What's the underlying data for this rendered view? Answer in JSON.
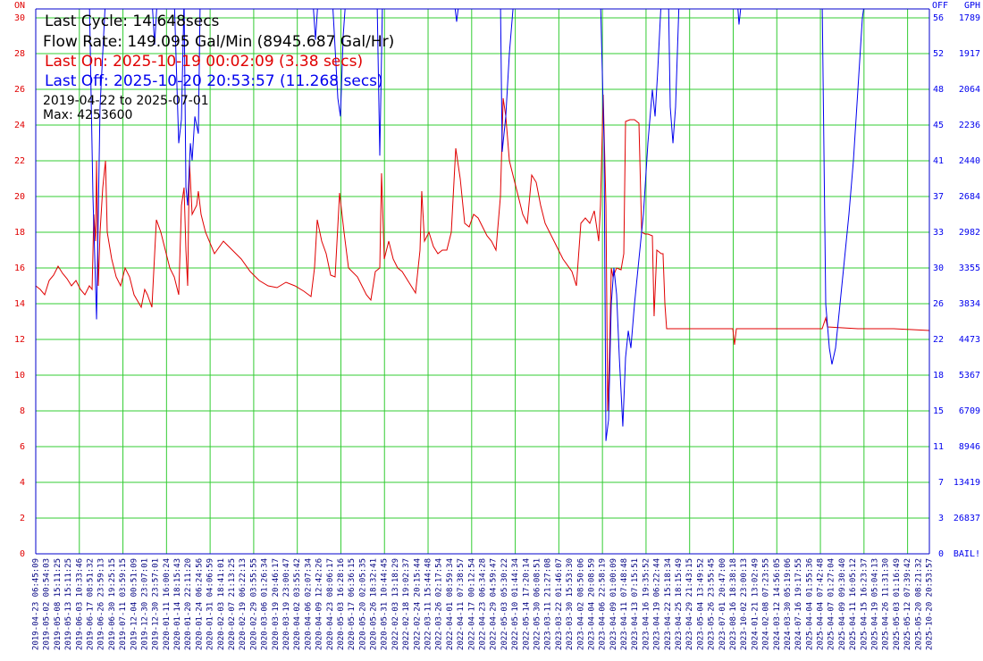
{
  "chart_data": {
    "type": "line",
    "last_cycle": "Last Cycle: 14.648secs",
    "flow_rate": "Flow Rate: 149.095 Gal/Min (8945.687 Gal/Hr)",
    "last_on": "Last On: 2025-10-19 00:02:09 (3.38 secs)",
    "last_off": "Last Off: 2025-10-20 20:53:57 (11.268 secs)",
    "date_range": "2019-04-22 to 2025-07-01",
    "max": "Max: 4253600",
    "y_axis_label": "ON",
    "y2_axis_label": "OFF",
    "gph_axis_label": "GPH",
    "categories": [
      "2019-04-23 06:45:09",
      "2019-05-02 00:54:03",
      "2019-05-08 15:11:25",
      "2019-05-13 15:11:25",
      "2019-06-03 10:33:46",
      "2019-06-17 08:51:32",
      "2019-06-26 23:59:13",
      "2019-06-30 19:25:15",
      "2019-07-11 03:59:15",
      "2019-12-04 00:51:09",
      "2019-12-30 23:07:01",
      "2019-12-30 23:57:01",
      "2020-01-11 16:00:24",
      "2020-01-14 18:15:43",
      "2020-01-20 22:11:20",
      "2020-01-24 06:24:56",
      "2020-01-31 04:06:59",
      "2020-02-03 18:41:01",
      "2020-02-07 21:13:25",
      "2020-02-19 06:22:13",
      "2020-02-29 03:55:55",
      "2020-03-06 01:26:34",
      "2020-03-19 20:46:17",
      "2020-03-19 23:00:47",
      "2020-04-02 03:55:42",
      "2020-04-06 02:07:34",
      "2020-04-09 12:42:26",
      "2020-04-23 08:06:17",
      "2020-05-03 16:28:16",
      "2020-05-17 06:36:15",
      "2020-05-20 02:05:35",
      "2020-05-26 18:32:41",
      "2020-05-31 10:44:45",
      "2022-02-03 13:18:29",
      "2022-02-18 19:02:37",
      "2022-02-24 20:15:44",
      "2022-03-11 15:44:48",
      "2022-03-26 02:17:54",
      "2022-04-01 08:59:34",
      "2022-04-11 07:38:57",
      "2022-04-17 00:12:54",
      "2022-04-23 06:34:28",
      "2022-04-29 04:59:47",
      "2022-05-03 05:30:22",
      "2022-05-10 01:44:34",
      "2022-05-14 17:20:14",
      "2022-05-30 06:08:51",
      "2023-03-11 21:27:08",
      "2023-03-22 01:46:07",
      "2023-03-30 15:53:30",
      "2023-04-02 08:50:06",
      "2023-04-04 20:08:59",
      "2023-04-06 22:58:19",
      "2023-04-09 01:00:09",
      "2023-04-11 07:48:48",
      "2023-04-13 07:15:51",
      "2023-04-16 19:35:52",
      "2023-04-19 06:22:44",
      "2023-04-22 15:18:34",
      "2023-04-25 18:15:49",
      "2023-04-29 21:43:15",
      "2023-05-04 13:49:52",
      "2023-05-26 23:55:45",
      "2023-07-01 20:47:00",
      "2023-08-16 18:38:18",
      "2023-10-02 23:00:13",
      "2024-01-21 13:02:49",
      "2024-02-08 07:23:55",
      "2024-03-12 14:56:05",
      "2024-03-30 05:19:06",
      "2024-07-16 19:17:55",
      "2025-04-04 01:55:36",
      "2025-04-04 07:42:48",
      "2025-04-07 01:27:04",
      "2025-04-09 09:30:40",
      "2025-04-11 16:05:12",
      "2025-04-15 16:23:37",
      "2025-04-19 05:04:13",
      "2025-04-26 11:31:30",
      "2025-05-03 01:16:49",
      "2025-05-12 07:39:42",
      "2025-05-20 08:21:32",
      "2025-10-20 20:53:57"
    ],
    "xlim": [
      0,
      82
    ],
    "xticks": [
      0,
      4,
      8,
      12,
      16,
      20,
      24,
      28,
      32,
      36,
      40,
      44,
      48,
      52,
      56,
      60,
      64,
      68,
      72,
      76,
      80
    ],
    "ylim": [
      0,
      30
    ],
    "yticks": [
      0,
      2,
      4,
      6,
      8,
      10,
      12,
      14,
      16,
      18,
      20,
      22,
      24,
      26,
      28,
      30
    ],
    "y2lim": [
      0,
      56
    ],
    "y2ticks": [
      0,
      3,
      7,
      11,
      15,
      18,
      22,
      26,
      30,
      33,
      37,
      41,
      45,
      48,
      52,
      56
    ],
    "gph_labels": [
      "BAIL!",
      "26837",
      "13419",
      "8946",
      "6709",
      "5367",
      "4473",
      "3834",
      "3355",
      "2982",
      "2684",
      "2440",
      "2236",
      "2064",
      "1917",
      "1789"
    ],
    "grid": true,
    "series": [
      {
        "color": "#e00000",
        "x": [
          0,
          0.41,
          0.82,
          1.23,
          1.64,
          2.05,
          2.46,
          2.87,
          3.28,
          3.69,
          4.1,
          4.51,
          4.92,
          5.17,
          5.33,
          5.49,
          5.58,
          5.74,
          5.9,
          6.15,
          6.4,
          6.56,
          6.97,
          7.38,
          7.79,
          8.2,
          8.61,
          9.02,
          9.68,
          10.0,
          10.25,
          10.66,
          11.07,
          11.48,
          11.89,
          12.3,
          12.71,
          13.12,
          13.37,
          13.61,
          13.78,
          13.94,
          14.1,
          14.35,
          14.76,
          14.92,
          15.17,
          15.58,
          16.4,
          17.22,
          18.04,
          18.86,
          19.68,
          20.5,
          21.32,
          22.14,
          22.96,
          23.78,
          24.6,
          25.26,
          25.58,
          25.83,
          26.24,
          26.65,
          27.06,
          27.47,
          27.88,
          28.29,
          28.7,
          29.52,
          30.34,
          30.75,
          31.16,
          31.57,
          31.73,
          31.98,
          32.39,
          32.8,
          33.21,
          33.62,
          34.44,
          34.85,
          35.26,
          35.42,
          35.67,
          36.08,
          36.49,
          36.9,
          37.31,
          37.72,
          38.13,
          38.54,
          38.95,
          39.36,
          39.77,
          40.18,
          40.59,
          41,
          41.41,
          41.82,
          42.23,
          42.64,
          42.89,
          43.13,
          43.46,
          43.87,
          44.28,
          44.69,
          45.1,
          45.51,
          45.92,
          46.33,
          46.74,
          47.56,
          48.38,
          49.2,
          49.61,
          50.02,
          50.43,
          50.84,
          51.25,
          51.66,
          51.82,
          52.07,
          52.32,
          52.48,
          52.64,
          52.81,
          52.97,
          53.3,
          53.71,
          53.96,
          54.12,
          54.53,
          54.94,
          55.35,
          55.6,
          55.92,
          56.17,
          56.58,
          56.74,
          56.99,
          57.4,
          57.56,
          57.73,
          57.89,
          59.04,
          62.32,
          63.96,
          64.12,
          64.29,
          67.24,
          70.52,
          72.16,
          72.49,
          72.65,
          75.44,
          78.72,
          82
        ],
        "values": [
          15.0,
          14.8,
          14.5,
          15.3,
          15.6,
          16.1,
          15.7,
          15.4,
          15.0,
          15.3,
          14.8,
          14.5,
          15.0,
          14.8,
          19.0,
          17.5,
          22.0,
          15.0,
          18.0,
          20.5,
          22.0,
          18.0,
          16.5,
          15.5,
          15.0,
          16.0,
          15.5,
          14.5,
          13.8,
          14.8,
          14.5,
          13.8,
          18.7,
          18.0,
          17.0,
          16.0,
          15.5,
          14.5,
          19.5,
          20.5,
          17.0,
          15.0,
          22.0,
          19.0,
          19.5,
          20.3,
          19.0,
          18.0,
          16.8,
          17.5,
          17.0,
          16.5,
          15.8,
          15.3,
          15.0,
          14.9,
          15.2,
          15.0,
          14.7,
          14.4,
          16.0,
          18.7,
          17.5,
          16.8,
          15.6,
          15.5,
          20.2,
          18.0,
          16.0,
          15.5,
          14.5,
          14.2,
          15.8,
          16.0,
          21.3,
          16.5,
          17.5,
          16.5,
          16.0,
          15.8,
          15.0,
          14.6,
          17.0,
          20.3,
          17.5,
          18.0,
          17.2,
          16.8,
          17.0,
          17.0,
          18.0,
          22.7,
          21.0,
          18.5,
          18.3,
          19.0,
          18.8,
          18.3,
          17.8,
          17.5,
          17.0,
          20.0,
          25.5,
          24.5,
          22.0,
          21.0,
          20.0,
          19.0,
          18.5,
          21.2,
          20.8,
          19.5,
          18.5,
          17.5,
          16.5,
          15.8,
          15.0,
          18.5,
          18.8,
          18.5,
          19.2,
          17.5,
          19.5,
          25.7,
          19.5,
          8.0,
          11.0,
          16.0,
          15.5,
          16.0,
          15.9,
          16.8,
          24.2,
          24.3,
          24.3,
          24.1,
          18.0,
          17.9,
          17.9,
          17.8,
          13.3,
          17.0,
          16.8,
          16.8,
          14.0,
          12.6,
          12.6,
          12.6,
          12.6,
          11.7,
          12.6,
          12.6,
          12.6,
          12.6,
          13.2,
          12.7,
          12.6,
          12.6,
          12.5
        ]
      },
      {
        "color": "#0000ee",
        "axis": "y2",
        "x": [
          0,
          4.92,
          5.25,
          5.58,
          5.9,
          6.4,
          10.66,
          10.91,
          11.15,
          12.71,
          13.12,
          13.37,
          13.61,
          13.78,
          13.94,
          14.19,
          14.35,
          14.6,
          14.92,
          15.09,
          25.42,
          25.67,
          25.91,
          27.22,
          27.72,
          27.96,
          28.21,
          28.45,
          31.32,
          31.57,
          31.82,
          38.38,
          38.62,
          38.87,
          42.64,
          42.8,
          43.13,
          43.46,
          43.87,
          51.82,
          52.15,
          52.32,
          52.56,
          52.81,
          53.05,
          53.3,
          53.55,
          53.87,
          54.12,
          54.37,
          54.61,
          54.94,
          55.35,
          55.76,
          56.17,
          56.58,
          56.83,
          57.07,
          57.4,
          58.06,
          58.22,
          58.47,
          58.71,
          59.04,
          64.37,
          64.53,
          64.78,
          72.16,
          72.49,
          72.82,
          73.06,
          73.39,
          73.8,
          74.29,
          74.62,
          75.03,
          75.44,
          75.85,
          76.1,
          82
        ],
        "values": [
          58,
          58,
          37.3,
          24.5,
          46.7,
          58,
          58,
          53.2,
          58,
          58,
          42.9,
          45.4,
          58,
          38.3,
          36.4,
          42.9,
          41.1,
          45.7,
          43.9,
          58,
          58,
          53.7,
          58,
          58,
          47.6,
          45.7,
          54.1,
          58,
          58,
          41.6,
          58,
          58,
          55.6,
          58,
          58,
          42,
          45.7,
          52.3,
          58,
          58,
          42.9,
          11.8,
          14,
          26.1,
          29.9,
          27.1,
          20.5,
          13.3,
          20.5,
          23.3,
          21.5,
          26.1,
          30.8,
          35.5,
          42.9,
          48.5,
          45.7,
          50.4,
          58,
          58,
          46.7,
          42.9,
          46.7,
          58,
          58,
          55.3,
          58,
          58,
          26.1,
          21.5,
          19.8,
          21.5,
          26.1,
          31.7,
          35.5,
          41.1,
          48.5,
          56,
          58,
          58
        ]
      }
    ]
  }
}
